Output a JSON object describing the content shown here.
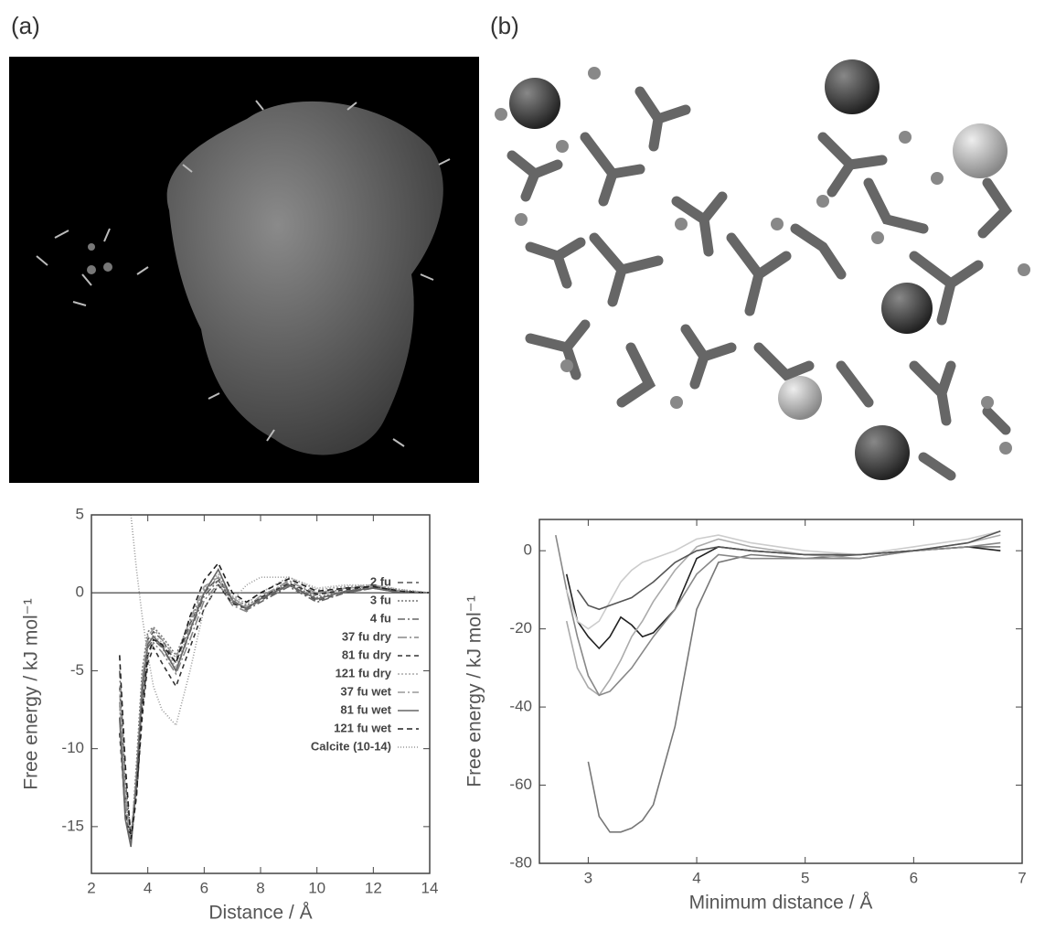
{
  "panel_labels": [
    "(a)",
    "(b)"
  ],
  "chart_data": [
    {
      "type": "line",
      "xlabel": "Distance / Å",
      "ylabel": "Free energy / kJ mol⁻¹",
      "xlim": [
        2,
        14
      ],
      "ylim": [
        -18,
        5
      ],
      "xticks": [
        2,
        4,
        6,
        8,
        10,
        12,
        14
      ],
      "yticks": [
        -15,
        -10,
        -5,
        0,
        5
      ],
      "hline": 0,
      "x": [
        3.0,
        3.2,
        3.4,
        3.6,
        3.8,
        4.0,
        4.2,
        4.5,
        5.0,
        5.5,
        6.0,
        6.5,
        7.0,
        7.5,
        8.0,
        9.0,
        10,
        11,
        12,
        13,
        14
      ],
      "series": [
        {
          "name": "2 fu",
          "color": "#555",
          "dash": "6,4",
          "values": [
            -6,
            -13,
            -16,
            -12,
            -6,
            -3,
            -2.5,
            -3,
            -4.5,
            -2,
            0,
            1,
            -0.5,
            -1,
            -0.5,
            0.5,
            -0.5,
            0,
            0.3,
            0,
            0
          ]
        },
        {
          "name": "3 fu",
          "color": "#777",
          "dash": "2,2",
          "values": [
            -7,
            -14,
            -16.2,
            -11,
            -5,
            -2.5,
            -2.2,
            -2.8,
            -4,
            -1.8,
            0.2,
            0.8,
            -0.4,
            -0.8,
            -0.3,
            0.6,
            -0.3,
            0.1,
            0.4,
            0.1,
            0
          ]
        },
        {
          "name": "4 fu",
          "color": "#666",
          "dash": "8,3,2,3",
          "values": [
            -5,
            -12,
            -15.5,
            -12,
            -6.5,
            -3.5,
            -3,
            -3.5,
            -5,
            -2.5,
            -0.2,
            0.8,
            -0.6,
            -1.1,
            -0.6,
            0.4,
            -0.6,
            0,
            0.3,
            0,
            0
          ]
        },
        {
          "name": "37 fu dry",
          "color": "#888",
          "dash": "10,3,2,3",
          "values": [
            -8,
            -13,
            -15.8,
            -12.5,
            -7,
            -4,
            -3.2,
            -3.8,
            -5.2,
            -3,
            -0.5,
            0.6,
            -0.8,
            -1.2,
            -0.4,
            0.8,
            -0.2,
            0.3,
            0.5,
            0.1,
            0
          ]
        },
        {
          "name": "81 fu dry",
          "color": "#333",
          "dash": "5,4",
          "values": [
            -9,
            -14,
            -16,
            -13,
            -8,
            -4.5,
            -3.5,
            -4.5,
            -6,
            -3.5,
            -1,
            0.5,
            -0.7,
            -1,
            -0.3,
            0.6,
            -0.1,
            0.2,
            0.4,
            0.1,
            0
          ]
        },
        {
          "name": "121 fu dry",
          "color": "#aaa",
          "dash": "2,2",
          "values": [
            -6,
            -12.5,
            -15.7,
            -12,
            -6,
            -3.2,
            -2.7,
            -3.2,
            -4.8,
            -2.2,
            0.3,
            1.2,
            -0.2,
            -0.7,
            0,
            1,
            0.2,
            0.4,
            0.5,
            0.2,
            0
          ]
        },
        {
          "name": "37 fu wet",
          "color": "#999",
          "dash": "8,3,2,3",
          "values": [
            -7,
            -13.5,
            -16,
            -11.5,
            -5.5,
            -2.8,
            -2.3,
            -3,
            -4.2,
            -1.7,
            0.4,
            1,
            -0.3,
            -0.9,
            -0.2,
            0.7,
            0,
            0.3,
            0.4,
            0.1,
            0
          ]
        },
        {
          "name": "81 fu wet",
          "color": "#666",
          "dash": "",
          "values": [
            -8,
            -14.5,
            -16.3,
            -12.2,
            -6.2,
            -3.3,
            -2.8,
            -3.4,
            -5,
            -2.4,
            0,
            1.5,
            -0.5,
            -1,
            -0.4,
            0.5,
            -0.4,
            0.1,
            0.3,
            0,
            0
          ]
        },
        {
          "name": "121 fu wet",
          "color": "#222",
          "dash": "6,4",
          "values": [
            -4,
            -11,
            -15.8,
            -13,
            -7.5,
            -4,
            -3,
            -3.3,
            -4.5,
            -1.5,
            0.8,
            1.9,
            0,
            -0.6,
            0,
            0.9,
            0.1,
            0.3,
            0.4,
            0.1,
            0
          ]
        },
        {
          "name": "Calcite (10-14)",
          "color": "#999",
          "dash": "1,2",
          "values": [
            null,
            null,
            5,
            1.5,
            -1.5,
            -4,
            -6,
            -7.5,
            -8.5,
            -5,
            -1,
            0.5,
            -0.5,
            0.5,
            1,
            1,
            0.3,
            0.5,
            0.5,
            0.2,
            0
          ]
        }
      ]
    },
    {
      "type": "line",
      "xlabel": "Minimum distance / Å",
      "ylabel": "Free energy / kJ mol⁻¹",
      "xlim": [
        2.55,
        7
      ],
      "ylim": [
        -80,
        8
      ],
      "xticks": [
        3,
        4,
        5,
        6,
        7
      ],
      "yticks": [
        -80,
        -60,
        -40,
        -20,
        0
      ],
      "x": [
        2.7,
        2.8,
        2.9,
        3.0,
        3.1,
        3.2,
        3.3,
        3.4,
        3.5,
        3.6,
        3.8,
        4.0,
        4.2,
        4.5,
        5,
        5.5,
        6,
        6.5,
        6.8
      ],
      "series": [
        {
          "color": "#777",
          "dash": "",
          "values": [
            null,
            null,
            null,
            -54,
            -68,
            -72,
            -72,
            -71,
            -69,
            -65,
            -45,
            -15,
            -3,
            -1,
            -2,
            -1,
            0,
            1,
            1
          ]
        },
        {
          "color": "#222",
          "dash": "",
          "values": [
            null,
            -6,
            -18,
            -22,
            -25,
            -22,
            -17,
            -19,
            -22,
            -21,
            -15,
            -2,
            1,
            0,
            -1,
            -1,
            0,
            1,
            0
          ]
        },
        {
          "color": "#aaa",
          "dash": "",
          "values": [
            null,
            -18,
            -30,
            -35,
            -37,
            -33,
            -28,
            -22,
            -18,
            -13,
            -5,
            1,
            3,
            1,
            -1,
            -2,
            0,
            2,
            4
          ]
        },
        {
          "color": "#888",
          "dash": "",
          "values": [
            4,
            -10,
            -22,
            -32,
            -37,
            -36,
            -33,
            -30,
            -26,
            -22,
            -15,
            -6,
            -1,
            -2,
            -2,
            -2,
            0,
            1,
            2
          ]
        },
        {
          "color": "#ccc",
          "dash": "",
          "values": [
            null,
            -10,
            -18,
            -20,
            -18,
            -13,
            -8,
            -5,
            -3,
            -2,
            0,
            3,
            4,
            2,
            0,
            -1,
            1,
            3,
            5
          ]
        },
        {
          "color": "#555",
          "dash": "",
          "values": [
            null,
            null,
            -10,
            -14,
            -15,
            -14,
            -13,
            -12,
            -10,
            -8,
            -3,
            0,
            1,
            0,
            -1,
            -1,
            0,
            2,
            5
          ]
        }
      ]
    }
  ]
}
